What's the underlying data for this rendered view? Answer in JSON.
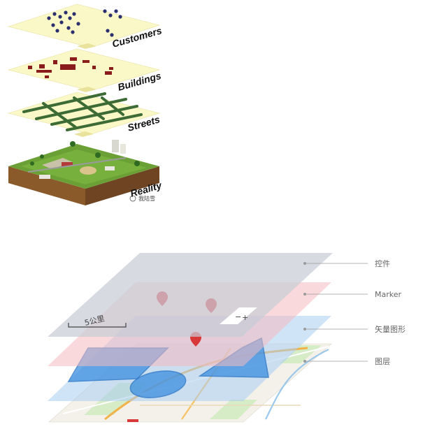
{
  "top_diagram": {
    "layers": [
      {
        "label": "Customers"
      },
      {
        "label": "Buildings"
      },
      {
        "label": "Streets"
      },
      {
        "label": "Reality"
      }
    ],
    "watermark": "我陆雪"
  },
  "bottom_diagram": {
    "layers": [
      {
        "label": "控件"
      },
      {
        "label": "Marker"
      },
      {
        "label": "矢量图形"
      },
      {
        "label": "图层"
      }
    ],
    "scale_bar_text": "5公里",
    "zoom_minus": "−",
    "zoom_plus": "+"
  },
  "colors": {
    "paper_layer": "#fbf8c8",
    "street": "#3d6b35",
    "building": "#8b1c1c",
    "pin": "#2b2f6e",
    "control_layer": "#c8ccd6",
    "marker_layer": "#f4b9bf",
    "vector_layer": "#a9cdf2",
    "vector_shape": "#3c8fe0",
    "marker_pin": "#d9383b"
  }
}
